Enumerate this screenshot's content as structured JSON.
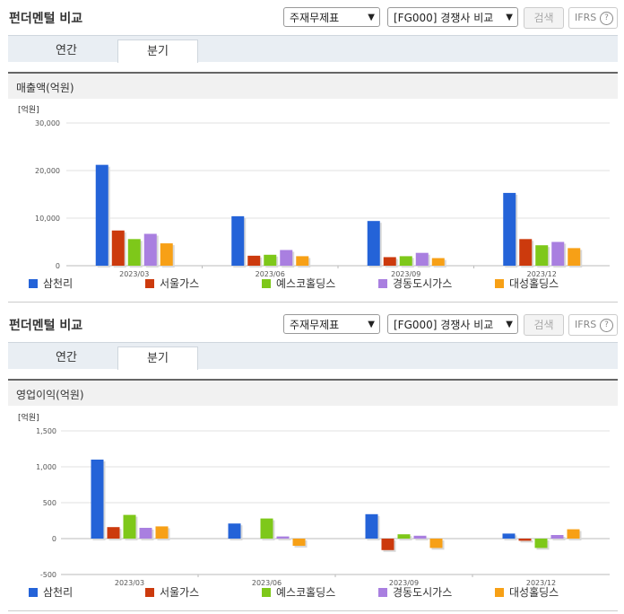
{
  "widgets": [
    {
      "title": "펀더멘털 비교",
      "statement_select": "주재무제표",
      "compare_select": "[FG000] 경쟁사 비교",
      "search_label": "검색",
      "ifrs_label": "IFRS",
      "help_label": "?",
      "tabs": [
        {
          "label": "연간",
          "active": false
        },
        {
          "label": "분기",
          "active": true
        }
      ],
      "metric_title": "매출액(억원)"
    },
    {
      "title": "펀더멘털 비교",
      "statement_select": "주재무제표",
      "compare_select": "[FG000] 경쟁사 비교",
      "search_label": "검색",
      "ifrs_label": "IFRS",
      "help_label": "?",
      "tabs": [
        {
          "label": "연간",
          "active": false
        },
        {
          "label": "분기",
          "active": true
        }
      ],
      "metric_title": "영업이익(억원)"
    }
  ],
  "colors": {
    "삼천리": "#2463d8",
    "서울가스": "#cc3a0d",
    "예스코홀딩스": "#7ec81a",
    "경동도시가스": "#a97fe0",
    "대성홀딩스": "#f7a016"
  },
  "chart_data": [
    {
      "type": "bar",
      "title": "매출액(억원)",
      "unit_label": "[억원]",
      "categories": [
        "2023/03",
        "2023/06",
        "2023/09",
        "2023/12"
      ],
      "ylim": [
        0,
        30000
      ],
      "yticks": [
        0,
        10000,
        20000,
        30000
      ],
      "ytick_labels": [
        "0",
        "10,000",
        "20,000",
        "30,000"
      ],
      "grid": true,
      "legend_position": "bottom",
      "series": [
        {
          "name": "삼천리",
          "values": [
            21200,
            10400,
            9400,
            15300
          ]
        },
        {
          "name": "서울가스",
          "values": [
            7400,
            2100,
            1800,
            5600
          ]
        },
        {
          "name": "예스코홀딩스",
          "values": [
            5600,
            2300,
            2000,
            4300
          ]
        },
        {
          "name": "경동도시가스",
          "values": [
            6700,
            3300,
            2700,
            5000
          ]
        },
        {
          "name": "대성홀딩스",
          "values": [
            4700,
            2000,
            1600,
            3700
          ]
        }
      ]
    },
    {
      "type": "bar",
      "title": "영업이익(억원)",
      "unit_label": "[억원]",
      "categories": [
        "2023/03",
        "2023/06",
        "2023/09",
        "2023/12"
      ],
      "ylim": [
        -500,
        1500
      ],
      "yticks": [
        -500,
        0,
        500,
        1000,
        1500
      ],
      "ytick_labels": [
        "-500",
        "0",
        "500",
        "1,000",
        "1,500"
      ],
      "grid": true,
      "legend_position": "bottom",
      "series": [
        {
          "name": "삼천리",
          "values": [
            1100,
            210,
            340,
            70
          ]
        },
        {
          "name": "서울가스",
          "values": [
            160,
            0,
            -160,
            -30
          ]
        },
        {
          "name": "예스코홀딩스",
          "values": [
            330,
            280,
            60,
            -130
          ]
        },
        {
          "name": "경동도시가스",
          "values": [
            150,
            30,
            40,
            50
          ]
        },
        {
          "name": "대성홀딩스",
          "values": [
            170,
            -100,
            -130,
            130
          ]
        }
      ]
    }
  ]
}
